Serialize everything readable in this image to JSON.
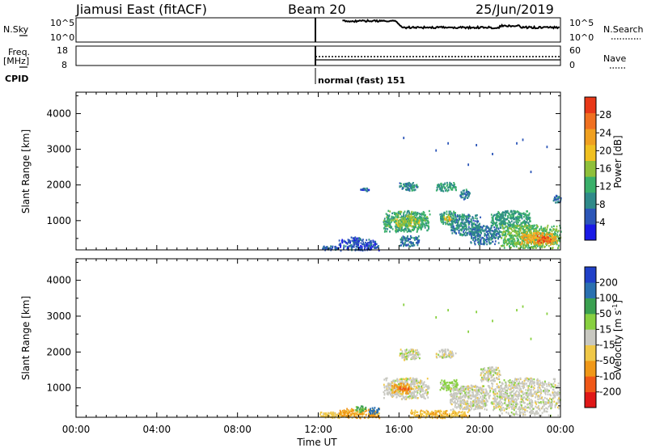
{
  "header": {
    "station": "Jiamusi East (fitACF)",
    "beam": "Beam 20",
    "date": "25/Jun/2019"
  },
  "side_labels": {
    "nsky": "N.Sky",
    "freq_line1": "Freq.",
    "freq_line2": "[MHz]",
    "cpid": "CPID",
    "nsearch": "N.Search",
    "nave": "Nave"
  },
  "cpid_text": "normal (fast) 151",
  "chart_data": [
    {
      "type": "line",
      "name": "noise-panel",
      "series": [
        {
          "name": "N.Sky"
        },
        {
          "name": "N.Search"
        }
      ],
      "y_ticks_left": [
        "10^5",
        "10^0"
      ],
      "y_ticks_right": [
        "10^5",
        "10^0"
      ],
      "x_range_hours": [
        0,
        24
      ],
      "data_start_hour": 12,
      "note": "sky noise near 10^5, decreasing slightly after 16:00"
    },
    {
      "type": "line",
      "name": "freq-panel",
      "series": [
        {
          "name": "Freq.",
          "style": "solid"
        },
        {
          "name": "Nave",
          "style": "dotted"
        }
      ],
      "y_ticks_left": [
        "18",
        "8"
      ],
      "y_ticks_right": [
        "60",
        "0"
      ],
      "x_range_hours": [
        0,
        24
      ],
      "data_start_hour": 12
    },
    {
      "type": "heatmap",
      "name": "power-panel",
      "ylabel": "Slant Range [km]",
      "y_ticks": [
        "4000",
        "3000",
        "2000",
        "1000"
      ],
      "y_tick_values": [
        4000,
        3000,
        2000,
        1000
      ],
      "ylim": [
        180,
        4600
      ],
      "x_range_hours": [
        0,
        24
      ],
      "colorbar": {
        "label": "Power [dB]",
        "ticks": [
          "28",
          "24",
          "20",
          "16",
          "12",
          "8",
          "4"
        ],
        "tick_values": [
          28,
          24,
          20,
          16,
          12,
          8,
          4
        ],
        "range": [
          0,
          32
        ],
        "colors": [
          "#1a1ae6",
          "#2c56b8",
          "#2f8a8a",
          "#3ab06a",
          "#8fc03a",
          "#f0c020",
          "#f0a020",
          "#f07020",
          "#e83818"
        ]
      },
      "patches": [
        {
          "t": [
            12.0,
            13.0
          ],
          "r": [
            180,
            320
          ],
          "v": 6
        },
        {
          "t": [
            13.0,
            15.0
          ],
          "r": [
            180,
            500
          ],
          "v": 5
        },
        {
          "t": [
            13.6,
            14.1
          ],
          "r": [
            400,
            560
          ],
          "v": 6
        },
        {
          "t": [
            14.0,
            14.5
          ],
          "r": [
            1850,
            1950
          ],
          "v": 6
        },
        {
          "t": [
            15.2,
            17.5
          ],
          "r": [
            700,
            1300
          ],
          "v": 12
        },
        {
          "t": [
            15.8,
            17.0
          ],
          "r": [
            850,
            1150
          ],
          "v": 16
        },
        {
          "t": [
            16.0,
            16.9
          ],
          "r": [
            1850,
            2100
          ],
          "v": 9
        },
        {
          "t": [
            16.0,
            17.0
          ],
          "r": [
            300,
            600
          ],
          "v": 8
        },
        {
          "t": [
            17.8,
            18.8
          ],
          "r": [
            1850,
            2100
          ],
          "v": 10
        },
        {
          "t": [
            18.0,
            18.8
          ],
          "r": [
            900,
            1300
          ],
          "v": 12
        },
        {
          "t": [
            18.2,
            18.6
          ],
          "r": [
            1000,
            1150
          ],
          "v": 20
        },
        {
          "t": [
            18.5,
            20.0
          ],
          "r": [
            600,
            1200
          ],
          "v": 9
        },
        {
          "t": [
            19.0,
            19.5
          ],
          "r": [
            1600,
            1900
          ],
          "v": 8
        },
        {
          "t": [
            19.5,
            21.0
          ],
          "r": [
            350,
            900
          ],
          "v": 8
        },
        {
          "t": [
            20.5,
            22.5
          ],
          "r": [
            800,
            1300
          ],
          "v": 11
        },
        {
          "t": [
            21.0,
            24.0
          ],
          "r": [
            250,
            900
          ],
          "v": 14
        },
        {
          "t": [
            22.0,
            23.8
          ],
          "r": [
            350,
            700
          ],
          "v": 22
        },
        {
          "t": [
            22.8,
            23.5
          ],
          "r": [
            400,
            600
          ],
          "v": 28
        },
        {
          "t": [
            23.6,
            24.0
          ],
          "r": [
            1500,
            1750
          ],
          "v": 8
        }
      ]
    },
    {
      "type": "heatmap",
      "name": "velocity-panel",
      "ylabel": "Slant Range [km]",
      "xlabel": "Time UT",
      "x_ticks": [
        "00:00",
        "04:00",
        "08:00",
        "12:00",
        "16:00",
        "20:00",
        "00:00"
      ],
      "x_tick_values": [
        0,
        4,
        8,
        12,
        16,
        20,
        24
      ],
      "y_ticks": [
        "4000",
        "3000",
        "2000",
        "1000"
      ],
      "y_tick_values": [
        4000,
        3000,
        2000,
        1000
      ],
      "ylim": [
        180,
        4600
      ],
      "x_range_hours": [
        0,
        24
      ],
      "colorbar": {
        "label": "Velocity [m s",
        "label_sup": "-1",
        "label_end": "]",
        "ticks": [
          "200",
          "100",
          "50",
          "15",
          "-15",
          "-50",
          "-100",
          "-200"
        ],
        "tick_values": [
          200,
          100,
          50,
          15,
          -15,
          -50,
          -100,
          -200
        ],
        "colors": [
          "#e01818",
          "#f05818",
          "#f09818",
          "#f0c848",
          "#c8c8c0",
          "#88d040",
          "#3aa050",
          "#2a70b0",
          "#2040c8"
        ]
      },
      "patches": [
        {
          "t": [
            12.0,
            13.5
          ],
          "r": [
            180,
            350
          ],
          "v": -30
        },
        {
          "t": [
            13.0,
            15.0
          ],
          "r": [
            180,
            450
          ],
          "v": -60
        },
        {
          "t": [
            13.8,
            14.4
          ],
          "r": [
            350,
            520
          ],
          "v": 60
        },
        {
          "t": [
            14.5,
            15.0
          ],
          "r": [
            300,
            480
          ],
          "v": 120
        },
        {
          "t": [
            15.2,
            17.5
          ],
          "r": [
            700,
            1300
          ],
          "v": 0
        },
        {
          "t": [
            15.6,
            16.6
          ],
          "r": [
            850,
            1150
          ],
          "v": -60
        },
        {
          "t": [
            16.0,
            16.5
          ],
          "r": [
            950,
            1050
          ],
          "v": -120
        },
        {
          "t": [
            16.0,
            17.0
          ],
          "r": [
            1800,
            2100
          ],
          "v": 0
        },
        {
          "t": [
            17.8,
            18.8
          ],
          "r": [
            1850,
            2100
          ],
          "v": 0
        },
        {
          "t": [
            18.0,
            18.9
          ],
          "r": [
            950,
            1250
          ],
          "v": 30
        },
        {
          "t": [
            18.5,
            20.5
          ],
          "r": [
            400,
            1100
          ],
          "v": 0
        },
        {
          "t": [
            20.5,
            24.0
          ],
          "r": [
            250,
            1300
          ],
          "v": 0
        },
        {
          "t": [
            16.5,
            19.5
          ],
          "r": [
            180,
            400
          ],
          "v": -40
        },
        {
          "t": [
            20.0,
            21.0
          ],
          "r": [
            1200,
            1600
          ],
          "v": 0
        }
      ]
    }
  ]
}
